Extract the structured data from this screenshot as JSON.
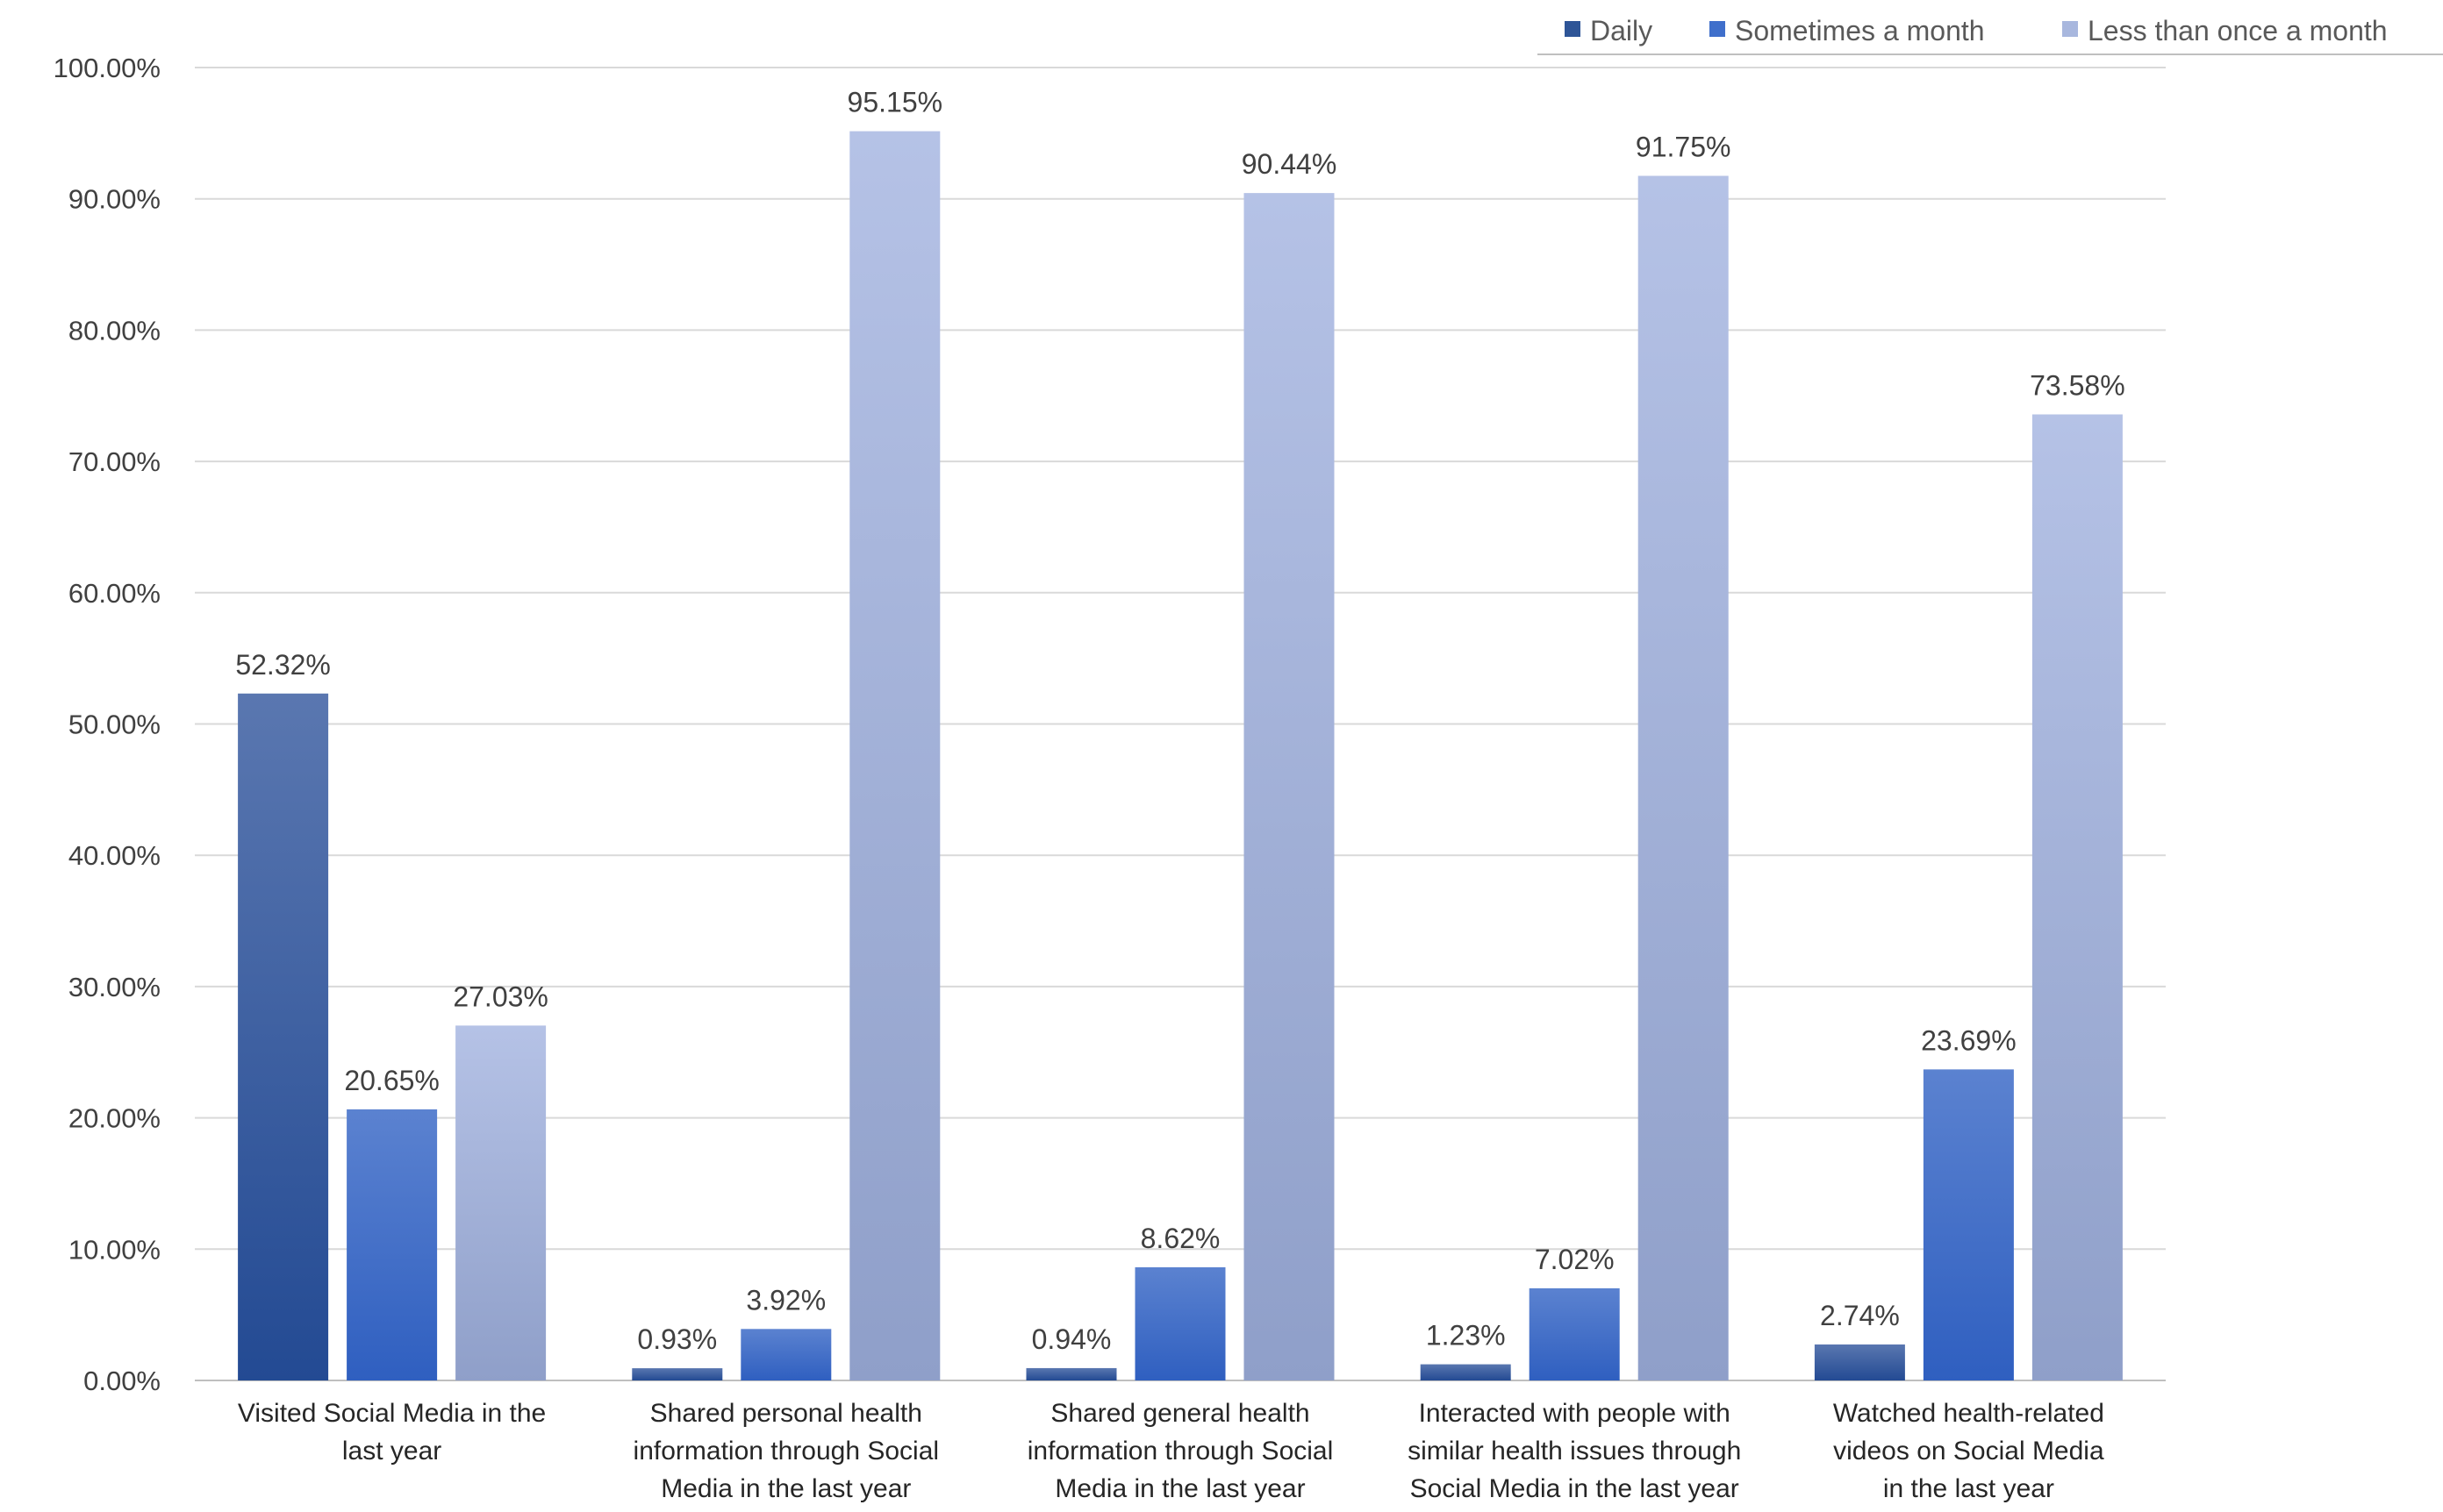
{
  "chart_data": {
    "type": "bar",
    "title": "",
    "xlabel": "",
    "ylabel": "",
    "ylim": [
      0,
      100
    ],
    "ytick_step": 10,
    "ytick_labels": [
      "0.00%",
      "10.00%",
      "20.00%",
      "30.00%",
      "40.00%",
      "50.00%",
      "60.00%",
      "70.00%",
      "80.00%",
      "90.00%",
      "100.00%"
    ],
    "grid": true,
    "legend_position": "top-right",
    "categories": [
      [
        "Visited Social Media in the",
        "last year"
      ],
      [
        "Shared personal health",
        "information through  Social",
        "Media in the last year"
      ],
      [
        "Shared general health",
        "information through  Social",
        "Media in the last year"
      ],
      [
        "Interacted with people with",
        "similar health issues through",
        "Social Media in the last year"
      ],
      [
        "Watched health-related",
        "videos on Social Media",
        "in the last year"
      ]
    ],
    "series": [
      {
        "name": "Daily",
        "color": "#2e5597",
        "values": [
          52.32,
          0.93,
          0.94,
          1.23,
          2.74
        ],
        "labels": [
          "52.32%",
          "0.93%",
          "0.94%",
          "1.23%",
          "2.74%"
        ]
      },
      {
        "name": "Sometimes a month",
        "color": "#3f6fcb",
        "values": [
          20.65,
          3.92,
          8.62,
          7.02,
          23.69
        ],
        "labels": [
          "20.65%",
          "3.92%",
          "8.62%",
          "7.02%",
          "23.69%"
        ]
      },
      {
        "name": "Less than once a month",
        "color": "#a8b7de",
        "values": [
          27.03,
          95.15,
          90.44,
          91.75,
          73.58
        ],
        "labels": [
          "27.03%",
          "95.15%",
          "90.44%",
          "91.75%",
          "73.58%"
        ]
      }
    ]
  }
}
